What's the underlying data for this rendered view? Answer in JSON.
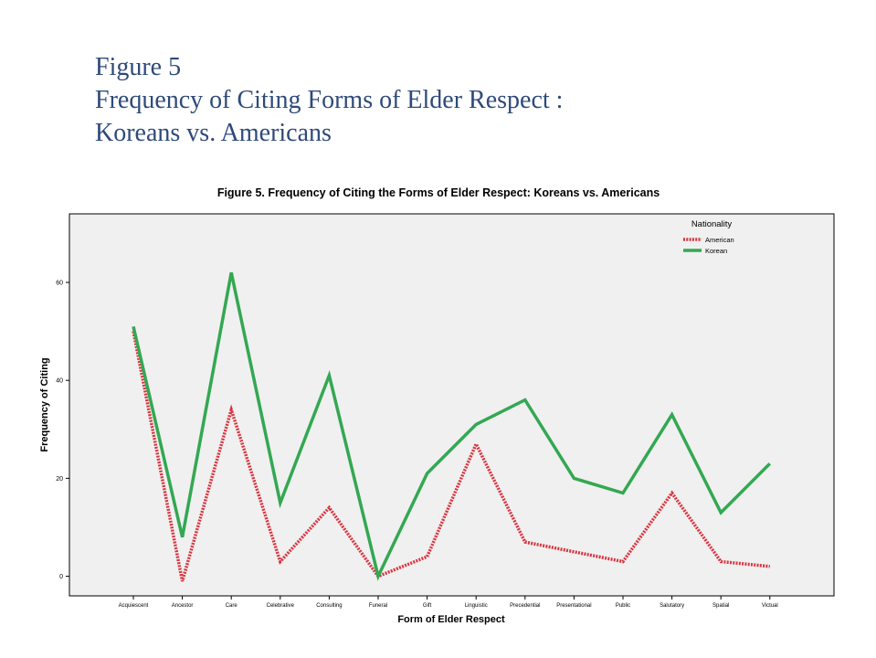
{
  "slide": {
    "title_line1": "Figure 5",
    "title_line2": "Frequency of Citing Forms of Elder Respect :",
    "title_line3": "Koreans vs. Americans"
  },
  "chart_data": {
    "type": "line",
    "title": "Figure 5.  Frequency of Citing the Forms of Elder Respect: Koreans vs. Americans",
    "xlabel": "Form of Elder Respect",
    "ylabel": "Frequency of Citing",
    "categories": [
      "Acquiescent",
      "Ancestor",
      "Care",
      "Celebrative",
      "Consulting",
      "Funeral",
      "Gift",
      "Linguistic",
      "Precedential",
      "Presentational",
      "Public",
      "Salutatory",
      "Spatial",
      "Victual"
    ],
    "ylim": [
      -4,
      74
    ],
    "yticks": [
      0,
      20,
      40,
      60
    ],
    "grid": false,
    "legend": {
      "title": "Nationality",
      "position": "top-right"
    },
    "series": [
      {
        "name": "American",
        "values": [
          50,
          -1,
          34,
          3,
          14,
          0,
          4,
          27,
          7,
          5,
          3,
          17,
          3,
          2
        ],
        "color": "#d9343f",
        "style": "dotted"
      },
      {
        "name": "Korean",
        "values": [
          51,
          8,
          62,
          15,
          41,
          0,
          21,
          31,
          36,
          20,
          17,
          33,
          13,
          23
        ],
        "color": "#33a852",
        "style": "solid"
      }
    ]
  }
}
